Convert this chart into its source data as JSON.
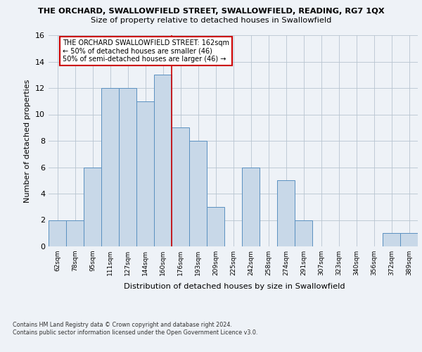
{
  "title_line1": "THE ORCHARD, SWALLOWFIELD STREET, SWALLOWFIELD, READING, RG7 1QX",
  "title_line2": "Size of property relative to detached houses in Swallowfield",
  "xlabel": "Distribution of detached houses by size in Swallowfield",
  "ylabel": "Number of detached properties",
  "categories": [
    "62sqm",
    "78sqm",
    "95sqm",
    "111sqm",
    "127sqm",
    "144sqm",
    "160sqm",
    "176sqm",
    "193sqm",
    "209sqm",
    "225sqm",
    "242sqm",
    "258sqm",
    "274sqm",
    "291sqm",
    "307sqm",
    "323sqm",
    "340sqm",
    "356sqm",
    "372sqm",
    "389sqm"
  ],
  "values": [
    2,
    2,
    6,
    12,
    12,
    11,
    13,
    9,
    8,
    3,
    0,
    6,
    0,
    5,
    2,
    0,
    0,
    0,
    0,
    1,
    1
  ],
  "bar_color": "#c8d8e8",
  "bar_edge_color": "#5a90c0",
  "vline_color": "#cc0000",
  "vline_x": 6.5,
  "annotation_text": "THE ORCHARD SWALLOWFIELD STREET: 162sqm\n← 50% of detached houses are smaller (46)\n50% of semi-detached houses are larger (46) →",
  "annotation_box_color": "#ffffff",
  "annotation_box_edge_color": "#cc0000",
  "ylim": [
    0,
    16
  ],
  "yticks": [
    0,
    2,
    4,
    6,
    8,
    10,
    12,
    14,
    16
  ],
  "footnote": "Contains HM Land Registry data © Crown copyright and database right 2024.\nContains public sector information licensed under the Open Government Licence v3.0.",
  "bg_color": "#eef2f7",
  "plot_bg_color": "#eef2f7"
}
